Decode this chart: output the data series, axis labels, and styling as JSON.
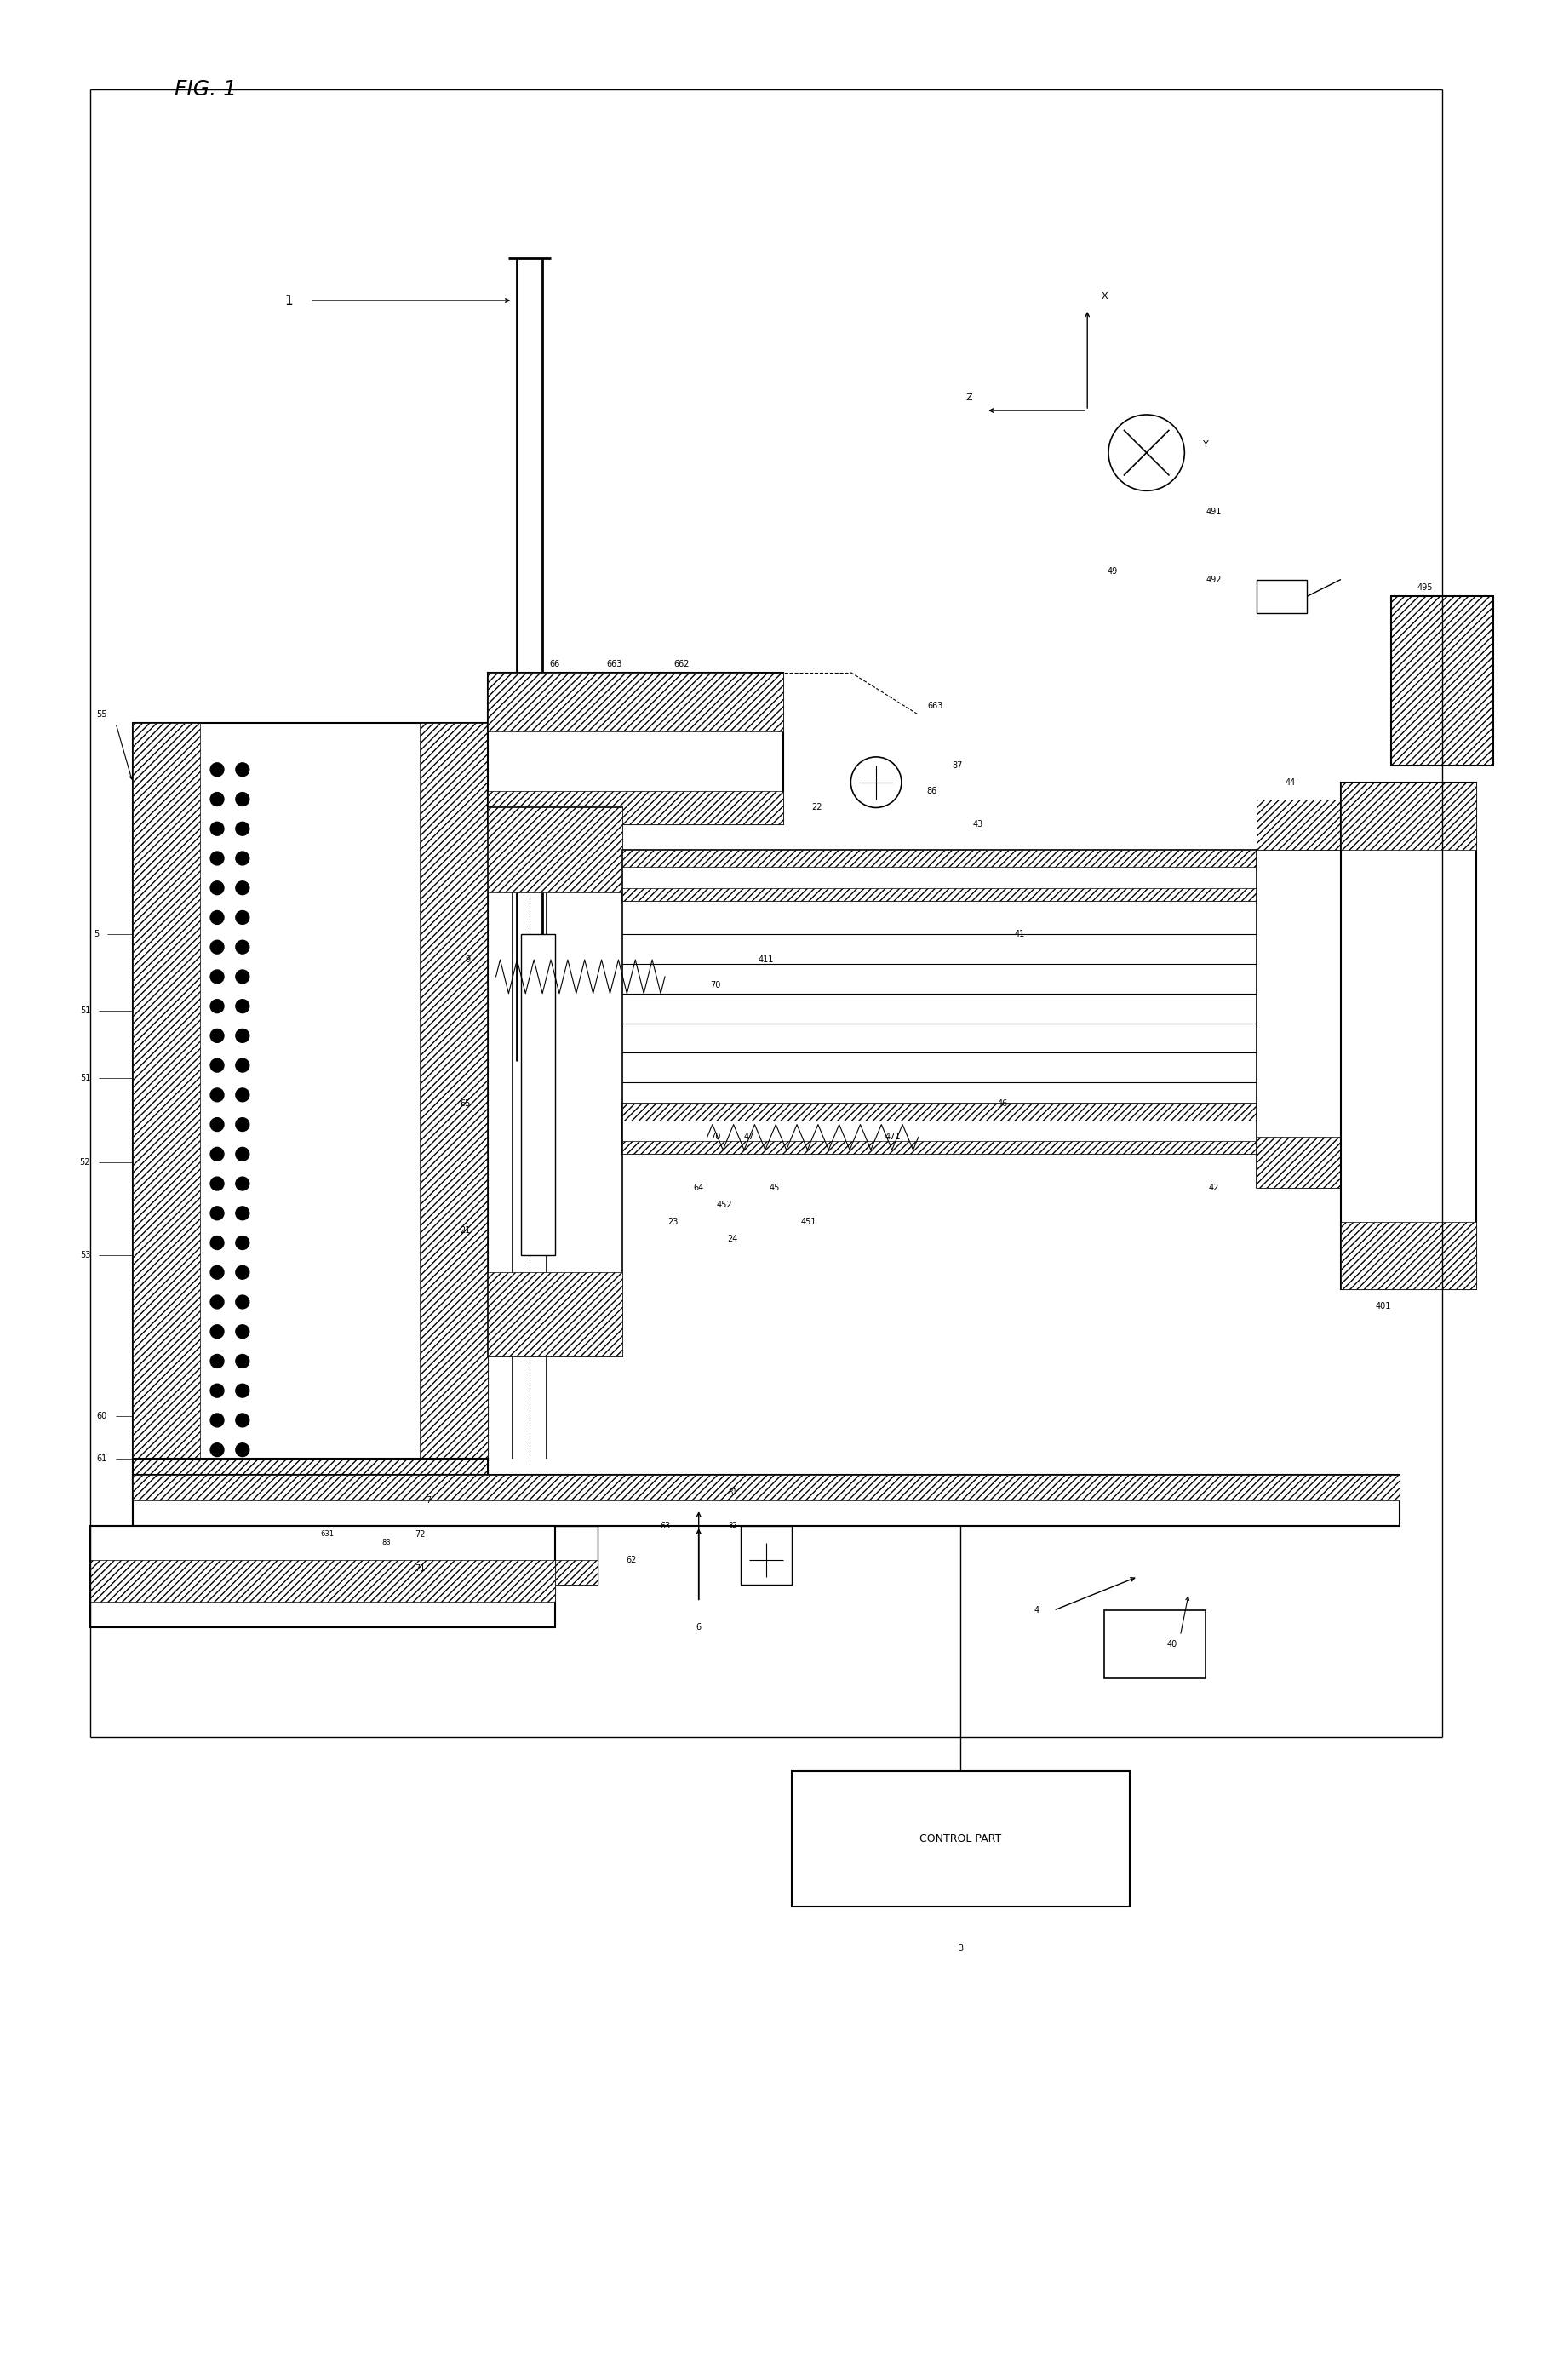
{
  "bg_color": "#ffffff",
  "fig_width": 18.24,
  "fig_height": 27.95,
  "fig_title": "FIG. 1",
  "labels": {
    "1": "1",
    "3": "3",
    "4": "4",
    "5": "5",
    "6": "6",
    "7": "7",
    "9": "9",
    "21": "21",
    "22": "22",
    "23": "23",
    "24": "24",
    "40": "40",
    "401": "401",
    "41": "41",
    "411": "411",
    "42": "42",
    "43": "43",
    "44": "44",
    "45": "45",
    "451": "451",
    "452": "452",
    "46": "46",
    "47": "47",
    "471": "471",
    "49": "49",
    "491": "491",
    "492": "492",
    "495": "495",
    "51": "51",
    "52": "52",
    "53": "53",
    "55": "55",
    "60": "60",
    "61": "61",
    "62": "62",
    "63": "63",
    "631": "631",
    "64": "64",
    "65": "65",
    "66": "66",
    "662": "662",
    "663": "663",
    "70": "70",
    "71": "71",
    "72": "72",
    "81": "81",
    "82": "82",
    "83": "83",
    "86": "86",
    "87": "87",
    "control": "CONTROL PART",
    "X": "X",
    "Y": "Y",
    "Z": "Z"
  }
}
